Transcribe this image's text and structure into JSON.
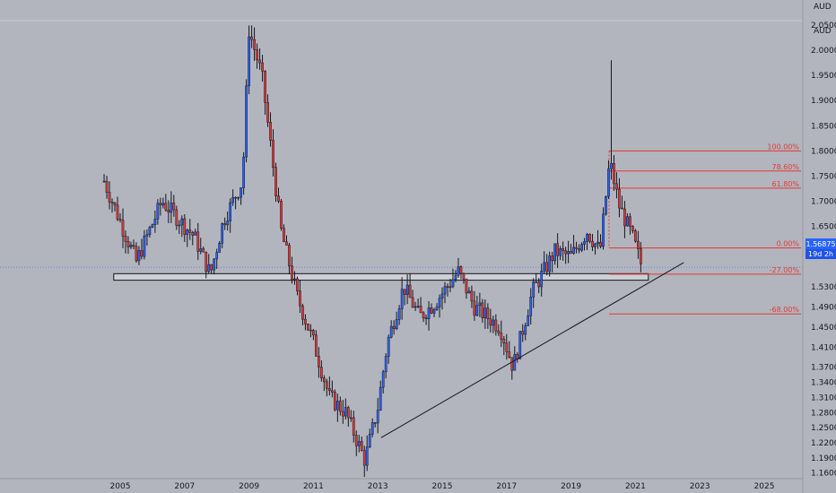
{
  "currency_label": "AUD",
  "price_tag": {
    "value": "1.56875",
    "countdown": "19d 2h"
  },
  "colors": {
    "background": "#b2b5be",
    "up": "#2962ff",
    "down": "#e53935",
    "wick": "#131722",
    "fib": "#e53935",
    "trendline": "#131722",
    "price_line": "#5b8bd9",
    "price_tag": "#2962ff"
  },
  "chart_data": {
    "type": "candlestick",
    "interval": "monthly",
    "x_axis": {
      "ticks": [
        "2005",
        "2007",
        "2009",
        "2011",
        "2013",
        "2015",
        "2017",
        "2019",
        "2021",
        "2023",
        "2025"
      ]
    },
    "y_axis": {
      "side": "right",
      "ticks": [
        "2.05000",
        "2.00000",
        "1.95000",
        "1.90000",
        "1.85000",
        "1.80000",
        "1.75000",
        "1.70000",
        "1.65000",
        "1.61000",
        "1.53000",
        "1.49000",
        "1.45000",
        "1.41000",
        "1.37000",
        "1.34000",
        "1.31000",
        "1.28000",
        "1.25000",
        "1.22000",
        "1.19000",
        "1.16000"
      ]
    },
    "current_price": 1.56875,
    "fibonacci": [
      {
        "label": "100.00%",
        "price": 1.8
      },
      {
        "label": "78.60%",
        "price": 1.76
      },
      {
        "label": "61.80%",
        "price": 1.726
      },
      {
        "label": "0.00%",
        "price": 1.607
      },
      {
        "label": "-27.00%",
        "price": 1.555
      },
      {
        "label": "-68.00%",
        "price": 1.476
      }
    ],
    "support_zone": {
      "top": 1.556,
      "bottom": 1.543,
      "from": 2004.8,
      "to": 2021.4
    },
    "trendline": {
      "start": [
        2013.1,
        1.23
      ],
      "end": [
        2022.5,
        1.578
      ]
    },
    "key_points": [
      {
        "t": 2004.5,
        "price": 1.74
      },
      {
        "t": 2005.5,
        "price": 1.58
      },
      {
        "t": 2006.3,
        "price": 1.7
      },
      {
        "t": 2007.3,
        "price": 1.63
      },
      {
        "t": 2007.8,
        "price": 1.555
      },
      {
        "t": 2008.2,
        "price": 1.66
      },
      {
        "t": 2008.8,
        "price": 1.74
      },
      {
        "t": 2009.0,
        "price": 2.04
      },
      {
        "t": 2009.4,
        "price": 1.95
      },
      {
        "t": 2010.0,
        "price": 1.64
      },
      {
        "t": 2010.5,
        "price": 1.51
      },
      {
        "t": 2011.0,
        "price": 1.42
      },
      {
        "t": 2011.5,
        "price": 1.31
      },
      {
        "t": 2012.0,
        "price": 1.28
      },
      {
        "t": 2012.6,
        "price": 1.185
      },
      {
        "t": 2013.0,
        "price": 1.29
      },
      {
        "t": 2013.3,
        "price": 1.42
      },
      {
        "t": 2013.8,
        "price": 1.53
      },
      {
        "t": 2014.3,
        "price": 1.47
      },
      {
        "t": 2014.8,
        "price": 1.5
      },
      {
        "t": 2015.5,
        "price": 1.56
      },
      {
        "t": 2016.0,
        "price": 1.49
      },
      {
        "t": 2016.8,
        "price": 1.45
      },
      {
        "t": 2017.2,
        "price": 1.37
      },
      {
        "t": 2017.8,
        "price": 1.52
      },
      {
        "t": 2018.5,
        "price": 1.6
      },
      {
        "t": 2019.0,
        "price": 1.59
      },
      {
        "t": 2019.5,
        "price": 1.64
      },
      {
        "t": 2019.9,
        "price": 1.6
      },
      {
        "t": 2020.2,
        "price": 1.78
      },
      {
        "t": 2020.5,
        "price": 1.69
      },
      {
        "t": 2020.9,
        "price": 1.63
      },
      {
        "t": 2021.2,
        "price": 1.57
      }
    ],
    "spike": {
      "t": 2020.23,
      "price": 1.98
    }
  }
}
